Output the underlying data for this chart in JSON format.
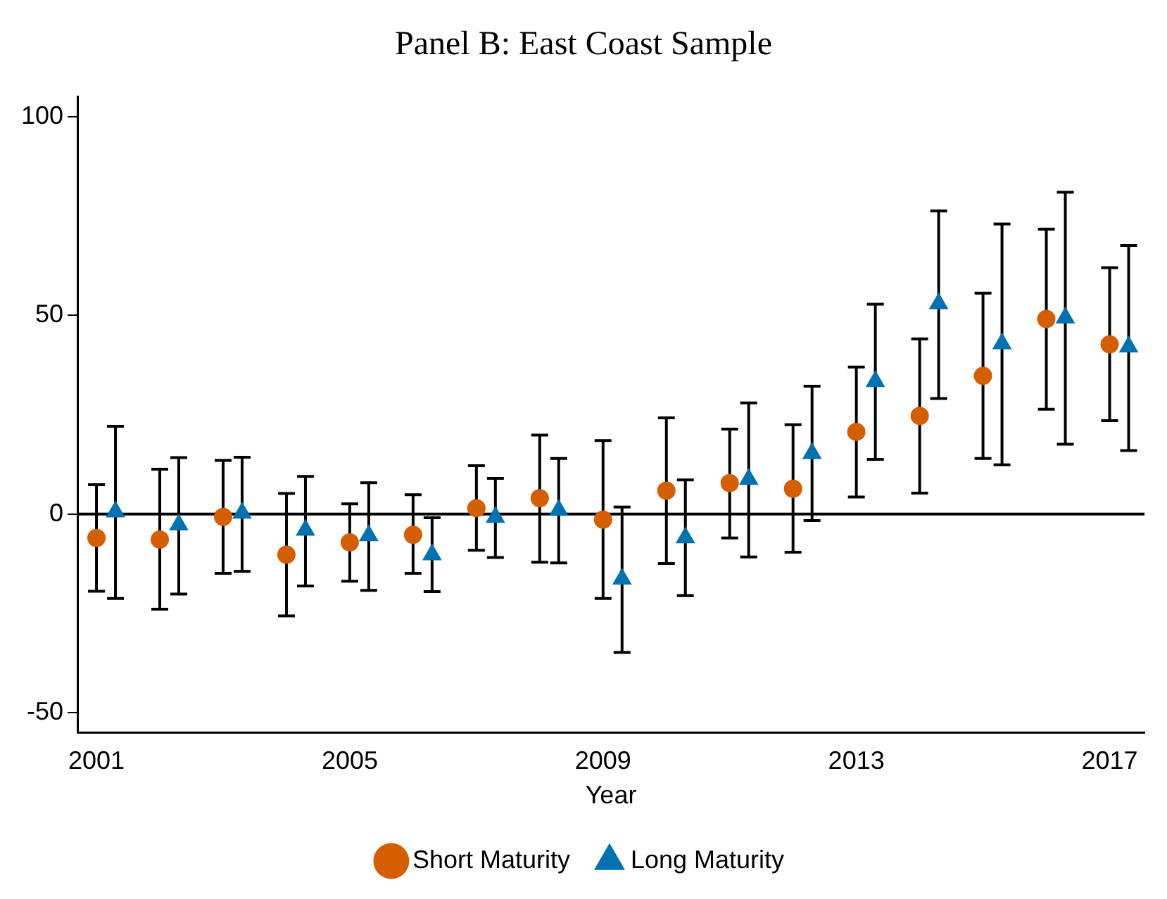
{
  "chart_data": {
    "type": "scatter",
    "title": "Panel B: East Coast Sample",
    "xlabel": "Year",
    "xlim": [
      2000.7,
      2017.55
    ],
    "xticks": [
      2001,
      2005,
      2009,
      2013,
      2017
    ],
    "ylim": [
      -55,
      105
    ],
    "yticks": [
      -50,
      0,
      50,
      100
    ],
    "grid": false,
    "legend": "bottom",
    "ref_lines": [
      {
        "axis": "y",
        "value": 0,
        "color": "#000000"
      }
    ],
    "series": [
      {
        "name": "Short Maturity",
        "color": "#d55e00",
        "marker": "circle",
        "x": [
          2001,
          2002,
          2003,
          2004,
          2005,
          2006,
          2007,
          2008,
          2009,
          2010,
          2011,
          2012,
          2013,
          2014,
          2015,
          2016,
          2017
        ],
        "values": [
          -6.0,
          -6.4,
          -0.7,
          -10.2,
          -7.1,
          -5.2,
          1.5,
          4.0,
          -1.4,
          5.9,
          7.8,
          6.4,
          20.7,
          24.7,
          34.8,
          49.1,
          42.7
        ],
        "errors": [
          [
            -19.4,
            7.4
          ],
          [
            -23.9,
            11.3
          ],
          [
            -14.9,
            13.5
          ],
          [
            -25.6,
            5.2
          ],
          [
            -16.9,
            2.6
          ],
          [
            -14.9,
            4.9
          ],
          [
            -9.1,
            12.2
          ],
          [
            -12.1,
            19.9
          ],
          [
            -21.2,
            18.5
          ],
          [
            -12.4,
            24.2
          ],
          [
            -6.0,
            21.4
          ],
          [
            -9.6,
            22.5
          ],
          [
            4.3,
            37.0
          ],
          [
            5.3,
            44.1
          ],
          [
            14.0,
            55.6
          ],
          [
            26.4,
            71.7
          ],
          [
            23.5,
            62.0
          ]
        ]
      },
      {
        "name": "Long Maturity",
        "color": "#0072b2",
        "marker": "triangle",
        "x": [
          2001.3,
          2002.3,
          2003.3,
          2004.3,
          2005.3,
          2006.3,
          2007.3,
          2008.3,
          2009.3,
          2010.3,
          2011.3,
          2012.3,
          2013.3,
          2014.3,
          2015.3,
          2016.3,
          2017.3
        ],
        "values": [
          0.6,
          -2.7,
          0.3,
          -4.0,
          -5.4,
          -10.2,
          -0.8,
          1.0,
          -16.3,
          -5.9,
          8.8,
          15.3,
          33.4,
          53.0,
          42.9,
          49.4,
          42.1
        ],
        "errors": [
          [
            -21.2,
            22.1
          ],
          [
            -20.1,
            14.2
          ],
          [
            -14.4,
            14.3
          ],
          [
            -18.1,
            9.5
          ],
          [
            -19.2,
            7.9
          ],
          [
            -19.5,
            -0.9
          ],
          [
            -10.9,
            9.0
          ],
          [
            -12.3,
            14.0
          ],
          [
            -34.8,
            1.8
          ],
          [
            -20.5,
            8.6
          ],
          [
            -10.8,
            28.0
          ],
          [
            -1.6,
            32.2
          ],
          [
            13.8,
            52.8
          ],
          [
            29.1,
            76.3
          ],
          [
            12.4,
            73.0
          ],
          [
            17.6,
            81.0
          ],
          [
            16.0,
            67.6
          ]
        ]
      }
    ]
  }
}
